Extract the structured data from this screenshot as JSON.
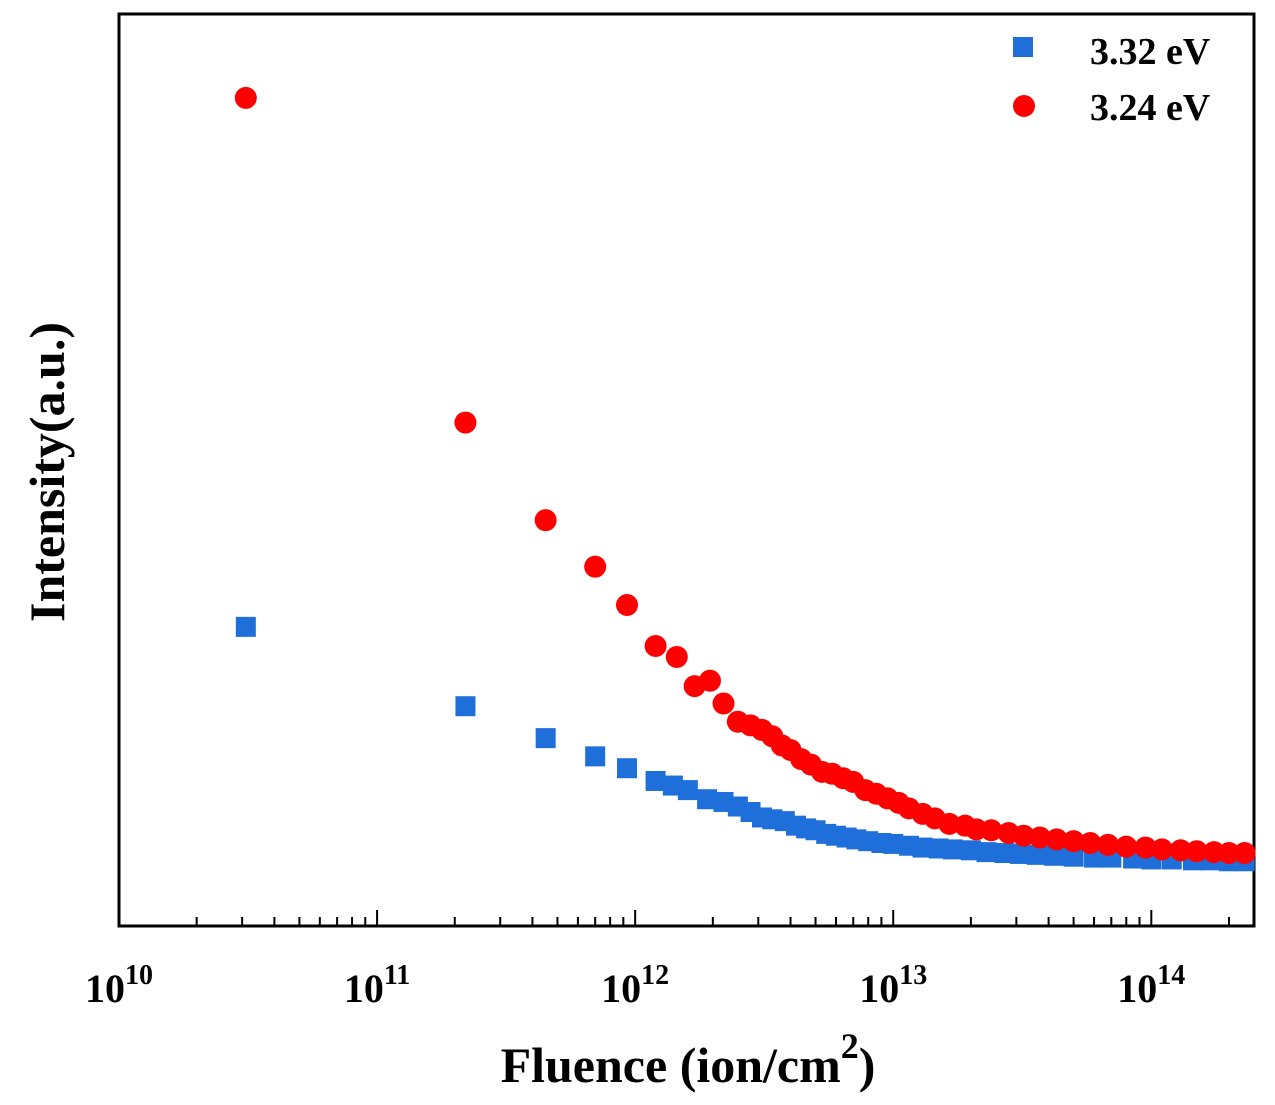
{
  "chart_data": {
    "type": "scatter",
    "title": "",
    "xlabel": "Fluence (ion/cm",
    "xlabel_superscript": "2",
    "xlabel_suffix": ")",
    "ylabel": "Intensity(a.u.)",
    "xscale": "log",
    "xlim": [
      10000000000.0,
      250000000000000.0
    ],
    "ylim": [
      0,
      100
    ],
    "y_tick_labels_shown": false,
    "grid": false,
    "legend_position": "top-right",
    "x_ticks": [
      {
        "base": "10",
        "exp": "10"
      },
      {
        "base": "10",
        "exp": "11"
      },
      {
        "base": "10",
        "exp": "12"
      },
      {
        "base": "10",
        "exp": "13"
      },
      {
        "base": "10",
        "exp": "14"
      }
    ],
    "series": [
      {
        "name": "3.32 eV",
        "marker": "square",
        "color": "#1f6fdb",
        "x": [
          31000000000.0,
          220000000000.0,
          450000000000.0,
          700000000000.0,
          930000000000.0,
          1200000000000.0,
          1400000000000.0,
          1600000000000.0,
          1900000000000.0,
          2200000000000.0,
          2500000000000.0,
          2800000000000.0,
          3100000000000.0,
          3400000000000.0,
          3800000000000.0,
          4200000000000.0,
          4600000000000.0,
          5000000000000.0,
          5500000000000.0,
          6000000000000.0,
          6600000000000.0,
          7200000000000.0,
          8000000000000.0,
          9000000000000.0,
          10000000000000.0,
          11500000000000.0,
          13000000000000.0,
          15000000000000.0,
          17000000000000.0,
          20000000000000.0,
          23000000000000.0,
          27000000000000.0,
          31000000000000.0,
          36000000000000.0,
          42000000000000.0,
          50000000000000.0,
          60000000000000.0,
          70000000000000.0,
          85000000000000.0,
          100000000000000.0,
          120000000000000.0,
          145000000000000.0,
          170000000000000.0,
          200000000000000.0,
          230000000000000.0
        ],
        "y": [
          32.8,
          24.1,
          20.6,
          18.6,
          17.3,
          15.9,
          15.4,
          14.9,
          13.9,
          13.6,
          13.1,
          12.5,
          11.9,
          11.7,
          11.5,
          11.0,
          10.7,
          10.5,
          10.1,
          9.9,
          9.7,
          9.5,
          9.3,
          9.1,
          9.0,
          8.8,
          8.6,
          8.5,
          8.4,
          8.3,
          8.1,
          8.0,
          7.9,
          7.8,
          7.7,
          7.6,
          7.5,
          7.5,
          7.4,
          7.3,
          7.3,
          7.2,
          7.2,
          7.1,
          7.1
        ]
      },
      {
        "name": "3.24 eV",
        "marker": "circle",
        "color": "#ff0000",
        "x": [
          31000000000.0,
          220000000000.0,
          450000000000.0,
          700000000000.0,
          930000000000.0,
          1200000000000.0,
          1450000000000.0,
          1700000000000.0,
          1950000000000.0,
          2200000000000.0,
          2500000000000.0,
          2800000000000.0,
          3100000000000.0,
          3400000000000.0,
          3700000000000.0,
          4000000000000.0,
          4400000000000.0,
          4800000000000.0,
          5300000000000.0,
          5800000000000.0,
          6400000000000.0,
          7000000000000.0,
          7800000000000.0,
          8600000000000.0,
          9500000000000.0,
          10500000000000.0,
          11500000000000.0,
          13000000000000.0,
          14500000000000.0,
          16500000000000.0,
          19000000000000.0,
          21000000000000.0,
          24000000000000.0,
          28000000000000.0,
          32000000000000.0,
          37000000000000.0,
          43000000000000.0,
          50000000000000.0,
          58000000000000.0,
          68000000000000.0,
          80000000000000.0,
          95000000000000.0,
          110000000000000.0,
          130000000000000.0,
          150000000000000.0,
          175000000000000.0,
          200000000000000.0,
          230000000000000.0
        ],
        "y": [
          90.8,
          55.2,
          44.5,
          39.4,
          35.2,
          30.7,
          29.5,
          26.3,
          26.9,
          24.4,
          22.4,
          22.0,
          21.5,
          20.8,
          19.8,
          19.3,
          18.3,
          17.7,
          16.9,
          16.7,
          16.2,
          15.8,
          14.9,
          14.5,
          14.0,
          13.5,
          12.9,
          12.3,
          11.8,
          11.2,
          11.0,
          10.6,
          10.5,
          10.2,
          9.9,
          9.7,
          9.5,
          9.3,
          9.1,
          8.9,
          8.7,
          8.6,
          8.4,
          8.3,
          8.2,
          8.1,
          8.0,
          8.0
        ]
      }
    ]
  }
}
